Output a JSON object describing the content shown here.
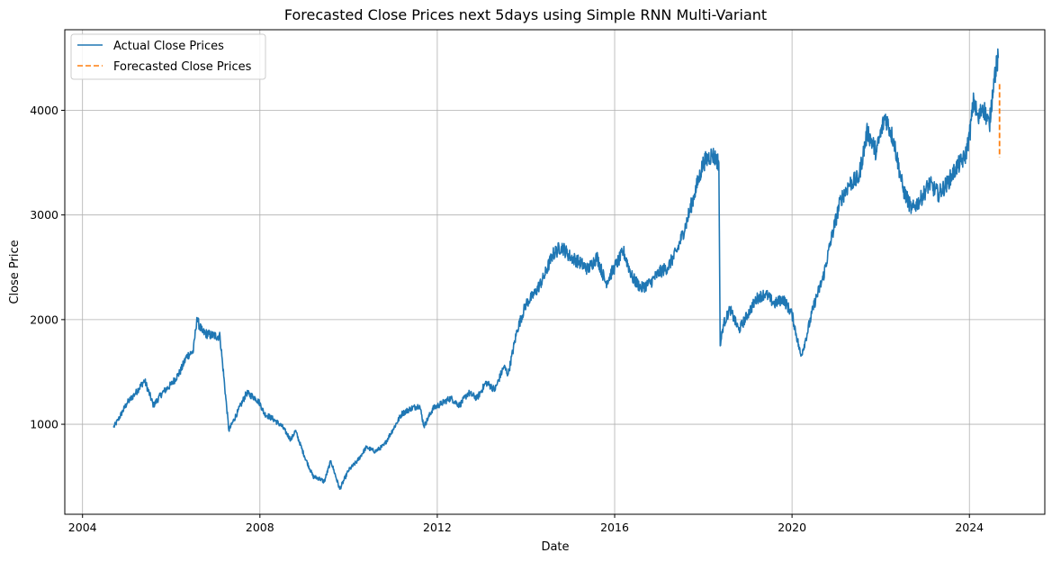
{
  "chart_data": {
    "type": "line",
    "title": "Forecasted Close Prices next 5days using Simple RNN Multi-Variant",
    "xlabel": "Date",
    "ylabel": "Close Price",
    "x_ticks": [
      "2004",
      "2008",
      "2012",
      "2016",
      "2020",
      "2024"
    ],
    "y_ticks": [
      "1000",
      "2000",
      "3000",
      "4000"
    ],
    "xlim": [
      2003.6,
      2025.7
    ],
    "ylim": [
      140,
      4770
    ],
    "grid": true,
    "legend_position": "top-left",
    "series": [
      {
        "name": "Actual Close Prices",
        "color": "#1f77b4",
        "style": "solid",
        "x": [
          2004.7,
          2004.8,
          2005.0,
          2005.2,
          2005.4,
          2005.6,
          2005.8,
          2006.0,
          2006.2,
          2006.35,
          2006.5,
          2006.55,
          2006.58,
          2006.6,
          2006.7,
          2006.9,
          2007.1,
          2007.3,
          2007.5,
          2007.7,
          2007.9,
          2008.0,
          2008.1,
          2008.3,
          2008.5,
          2008.7,
          2008.8,
          2009.0,
          2009.2,
          2009.35,
          2009.45,
          2009.6,
          2009.8,
          2010.0,
          2010.2,
          2010.4,
          2010.6,
          2010.8,
          2011.0,
          2011.2,
          2011.4,
          2011.6,
          2011.7,
          2011.9,
          2012.1,
          2012.3,
          2012.5,
          2012.7,
          2012.9,
          2013.1,
          2013.3,
          2013.5,
          2013.6,
          2013.8,
          2014.0,
          2014.2,
          2014.4,
          2014.6,
          2014.8,
          2015.0,
          2015.2,
          2015.4,
          2015.6,
          2015.8,
          2016.0,
          2016.2,
          2016.4,
          2016.6,
          2016.8,
          2017.0,
          2017.2,
          2017.4,
          2017.6,
          2017.8,
          2017.9,
          2018.0,
          2018.2,
          2018.35,
          2018.38,
          2018.45,
          2018.6,
          2018.8,
          2019.0,
          2019.2,
          2019.4,
          2019.6,
          2019.8,
          2020.0,
          2020.2,
          2020.3,
          2020.5,
          2020.7,
          2020.9,
          2021.1,
          2021.3,
          2021.5,
          2021.7,
          2021.9,
          2022.1,
          2022.3,
          2022.5,
          2022.7,
          2022.9,
          2023.1,
          2023.3,
          2023.5,
          2023.7,
          2023.9,
          2024.0,
          2024.1,
          2024.2,
          2024.3,
          2024.45,
          2024.55,
          2024.65
        ],
        "y": [
          970,
          1040,
          1200,
          1300,
          1420,
          1180,
          1300,
          1380,
          1500,
          1650,
          1700,
          1900,
          2020,
          1980,
          1880,
          1850,
          1840,
          940,
          1120,
          1300,
          1250,
          1200,
          1100,
          1050,
          980,
          850,
          940,
          700,
          500,
          480,
          450,
          650,
          380,
          560,
          650,
          780,
          740,
          800,
          950,
          1100,
          1150,
          1180,
          980,
          1150,
          1200,
          1250,
          1180,
          1300,
          1250,
          1400,
          1330,
          1550,
          1480,
          1900,
          2150,
          2250,
          2400,
          2620,
          2700,
          2600,
          2550,
          2480,
          2600,
          2350,
          2500,
          2650,
          2400,
          2300,
          2350,
          2450,
          2500,
          2650,
          2900,
          3200,
          3350,
          3500,
          3580,
          3500,
          1750,
          1950,
          2100,
          1900,
          2050,
          2200,
          2250,
          2150,
          2200,
          2050,
          1650,
          1800,
          2150,
          2400,
          2800,
          3150,
          3300,
          3350,
          3800,
          3600,
          3950,
          3700,
          3250,
          3050,
          3150,
          3300,
          3200,
          3300,
          3450,
          3550,
          3750,
          4100,
          3900,
          4050,
          3850,
          4300,
          4500
        ],
        "forecast_x": [
          2024.68,
          2024.68,
          2024.68,
          2024.68,
          2024.68
        ],
        "forecast_y": [
          4250,
          4100,
          3950,
          3750,
          3550
        ]
      },
      {
        "name": "Forecasted Close Prices",
        "color": "#ff7f0e",
        "style": "dashed"
      }
    ]
  }
}
